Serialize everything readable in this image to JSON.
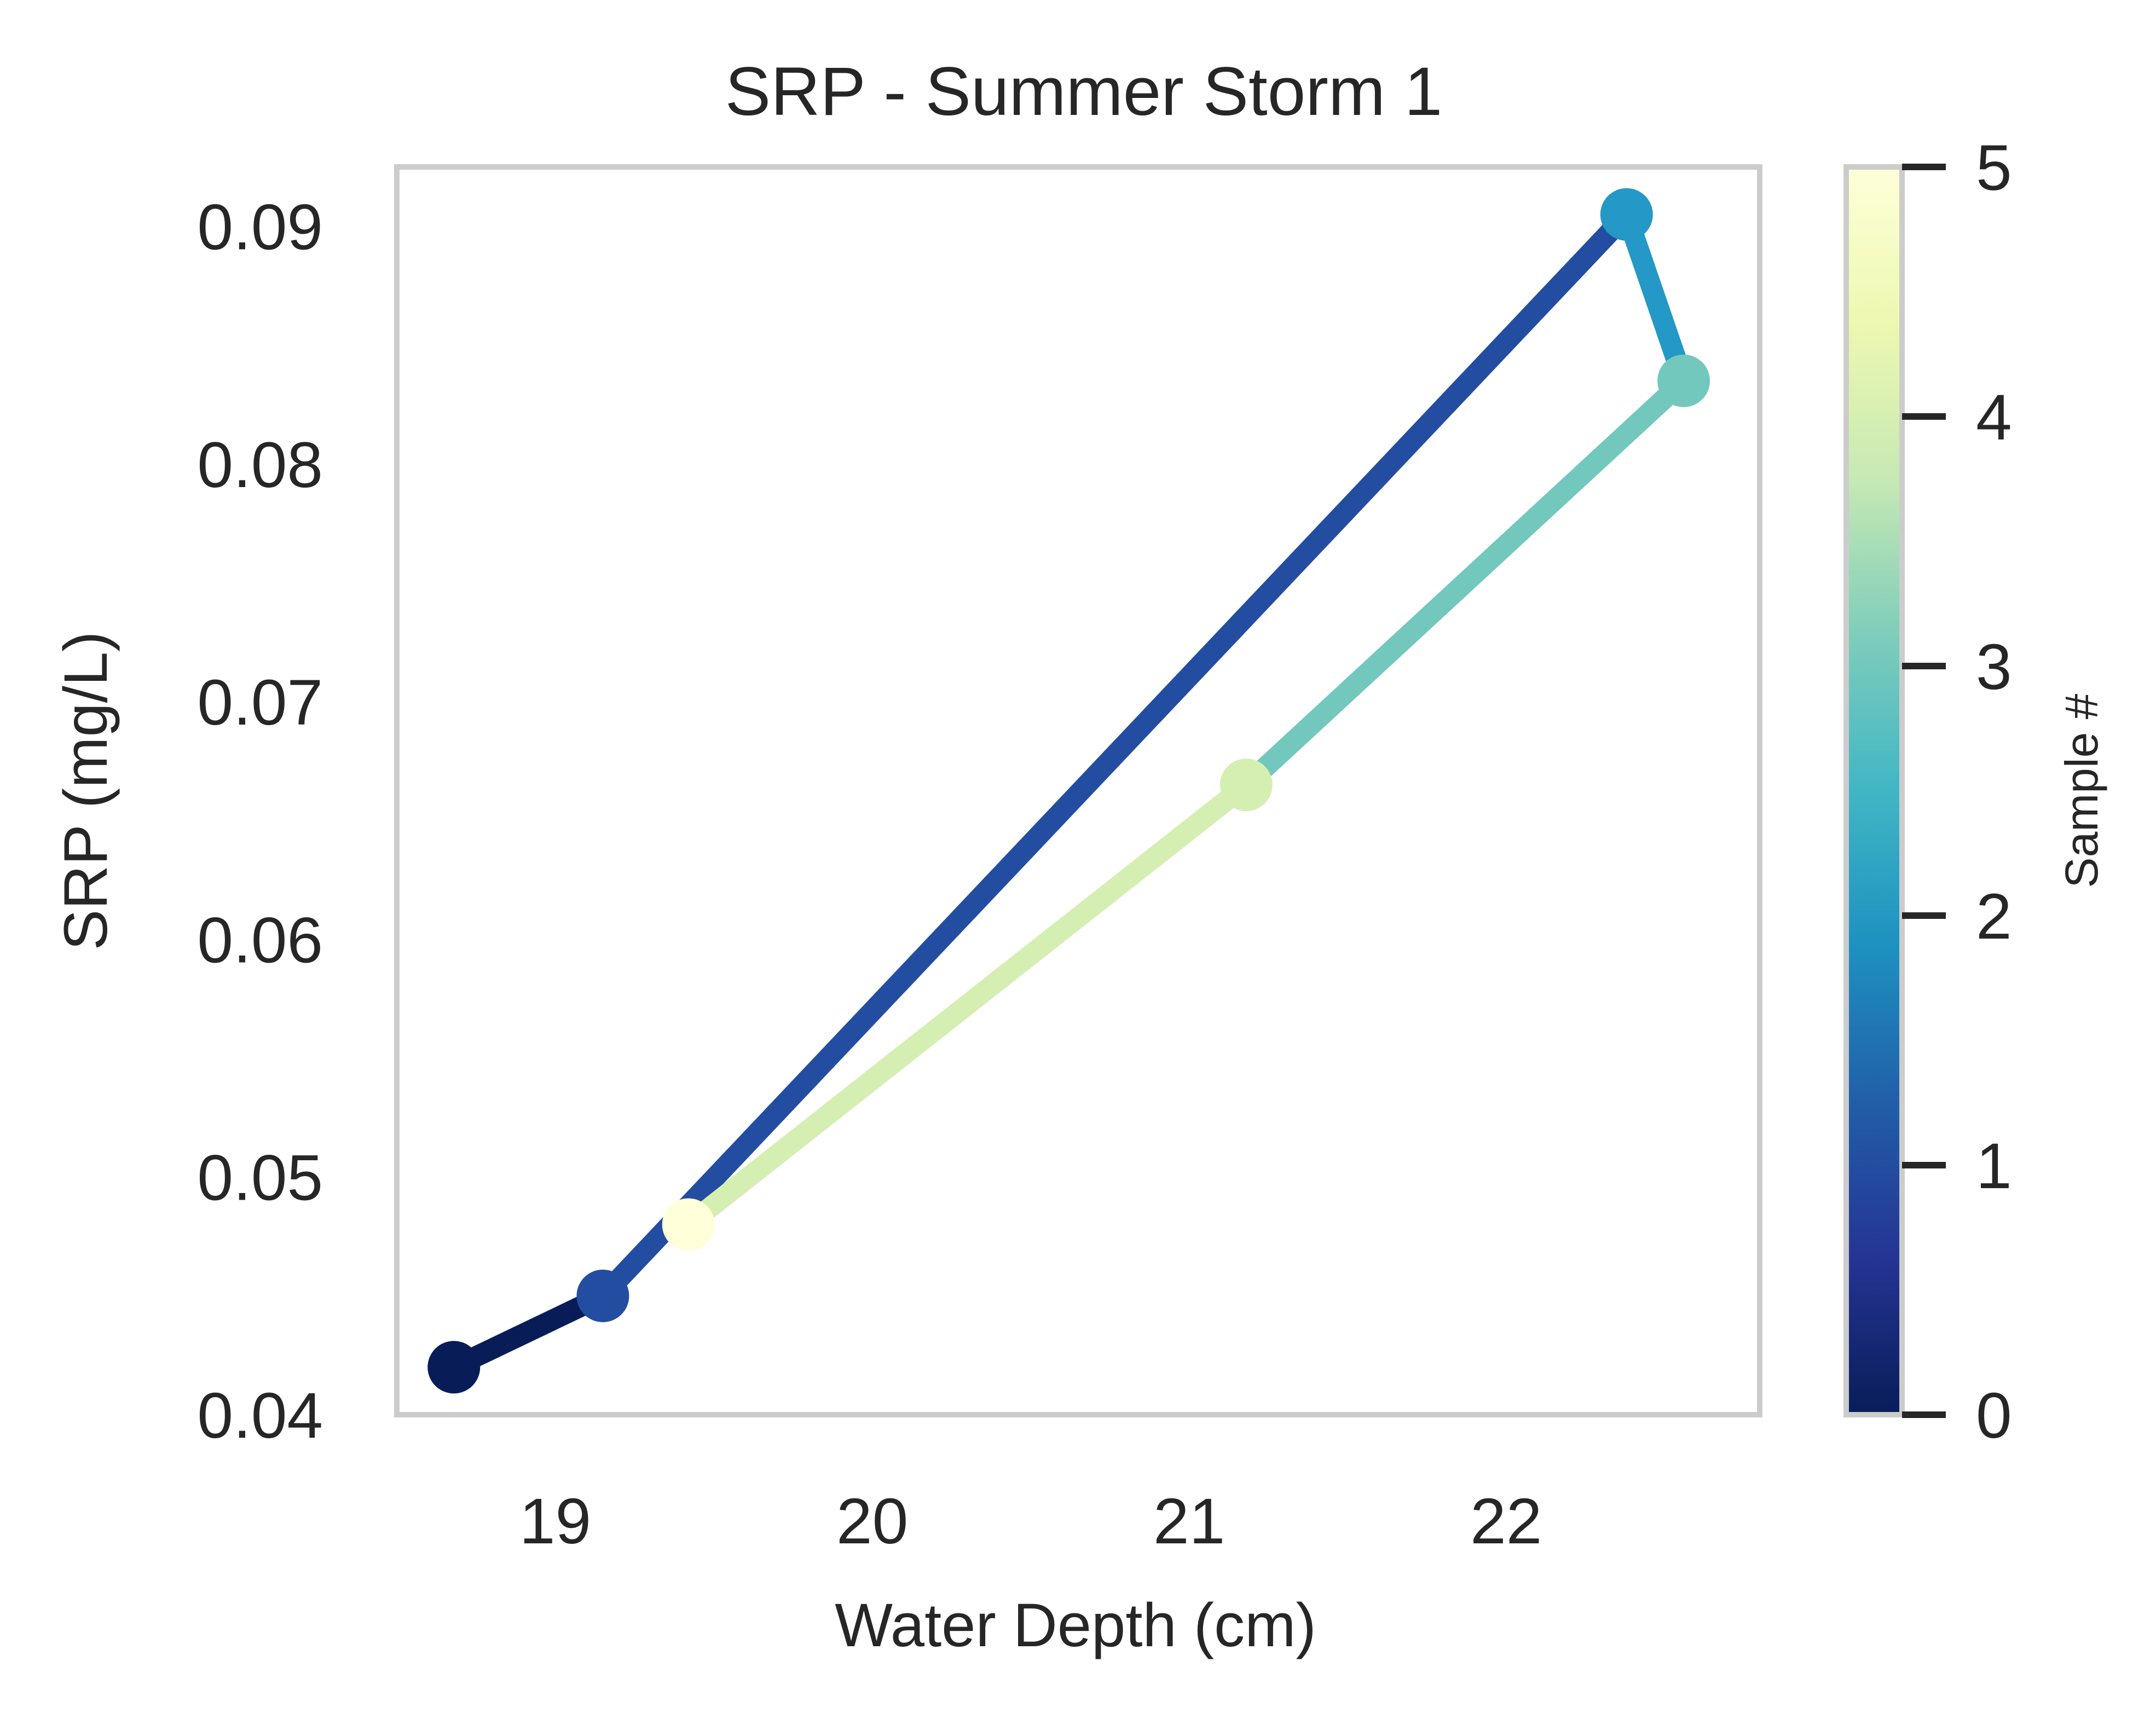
{
  "chart_data": {
    "type": "line",
    "title": "SRP - Summer Storm 1",
    "xlabel": "Water Depth (cm)",
    "ylabel": "SRP (mg/L)",
    "xlim": [
      18.5,
      22.8
    ],
    "ylim": [
      0.04,
      0.0925
    ],
    "xticks": [
      19,
      20,
      21,
      22
    ],
    "xtick_labels": [
      "19",
      "20",
      "21",
      "22"
    ],
    "yticks": [
      0.04,
      0.05,
      0.06,
      0.07,
      0.08,
      0.09
    ],
    "ytick_labels": [
      "0.04",
      "0.05",
      "0.06",
      "0.07",
      "0.08",
      "0.09"
    ],
    "grid": false,
    "points": [
      {
        "sample": 0,
        "x": 18.68,
        "y": 0.042
      },
      {
        "sample": 1,
        "x": 19.15,
        "y": 0.045
      },
      {
        "sample": 2,
        "x": 22.38,
        "y": 0.0905
      },
      {
        "sample": 3,
        "x": 22.56,
        "y": 0.0835
      },
      {
        "sample": 4,
        "x": 21.18,
        "y": 0.0665
      },
      {
        "sample": 5,
        "x": 19.42,
        "y": 0.048
      }
    ],
    "colorbar": {
      "label": "Sample #",
      "range": [
        0,
        5
      ],
      "ticks": [
        0,
        1,
        2,
        3,
        4,
        5
      ],
      "tick_labels": [
        "0",
        "1",
        "2",
        "3",
        "4",
        "5"
      ],
      "colormap": "YlGnBu_r",
      "stops": [
        {
          "v": 0.0,
          "color": "#081d58"
        },
        {
          "v": 0.125,
          "color": "#253494"
        },
        {
          "v": 0.25,
          "color": "#225ea8"
        },
        {
          "v": 0.375,
          "color": "#1d91c0"
        },
        {
          "v": 0.5,
          "color": "#41b6c4"
        },
        {
          "v": 0.625,
          "color": "#7fcdbb"
        },
        {
          "v": 0.75,
          "color": "#c7e9b4"
        },
        {
          "v": 0.875,
          "color": "#edf8b1"
        },
        {
          "v": 1.0,
          "color": "#ffffd9"
        }
      ]
    },
    "segment_colors": [
      "#081d58",
      "#234da0",
      "#2498c6",
      "#73c8bd",
      "#d5efb3"
    ],
    "point_colors": [
      "#081d58",
      "#234da0",
      "#2498c6",
      "#73c8bd",
      "#d5efb3",
      "#ffffd9"
    ]
  }
}
